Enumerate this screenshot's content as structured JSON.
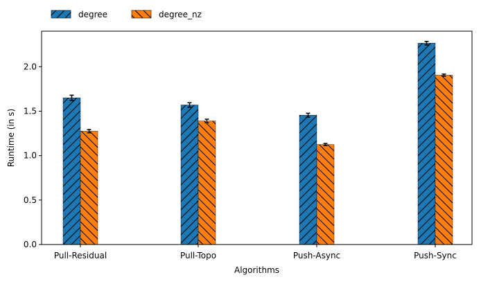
{
  "chart_data": {
    "type": "bar",
    "title": "",
    "xlabel": "Algorithms",
    "ylabel": "Runtime (in s)",
    "categories": [
      "Pull-Residual",
      "Pull-Topo",
      "Push-Async",
      "Push-Sync"
    ],
    "ylim": [
      0,
      2.4
    ],
    "yticks": [
      "0.0",
      "0.5",
      "1.0",
      "1.5",
      "2.0"
    ],
    "grid": false,
    "legend_position": "top-left, above the plot",
    "series": [
      {
        "name": "degree",
        "color": "#1f77b4",
        "hatch": "forward-diagonal",
        "values": [
          1.65,
          1.57,
          1.455,
          2.265
        ],
        "errors": [
          0.03,
          0.025,
          0.022,
          0.02
        ]
      },
      {
        "name": "degree_nz",
        "color": "#ff7f0e",
        "hatch": "backward-diagonal",
        "values": [
          1.275,
          1.39,
          1.125,
          1.905
        ],
        "errors": [
          0.018,
          0.02,
          0.012,
          0.012
        ]
      }
    ]
  }
}
